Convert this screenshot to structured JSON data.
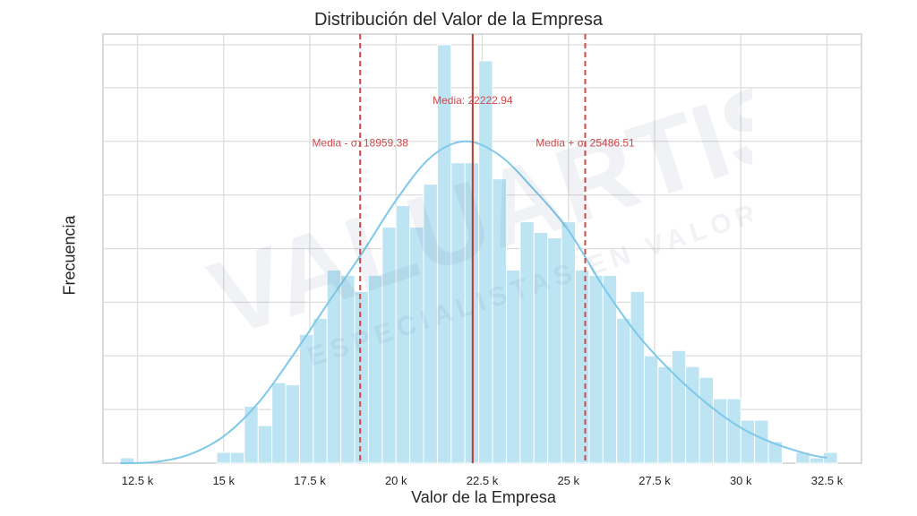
{
  "chart_data": {
    "type": "bar",
    "title": "Distribución del Valor de la Empresa",
    "xlabel": "Valor de la Empresa",
    "ylabel": "Frecuencia",
    "xlim": [
      11500,
      33500
    ],
    "ylim": [
      0,
      40
    ],
    "grid": true,
    "xticks": [
      12500,
      15000,
      17500,
      20000,
      22500,
      25000,
      27500,
      30000,
      32500
    ],
    "xtick_labels": [
      "12.5 k",
      "15 k",
      "17.5 k",
      "20 k",
      "22.5 k",
      "25 k",
      "27.5 k",
      "30 k",
      "32.5 k"
    ],
    "bin_width": 400,
    "bins_start": [
      12000,
      12400,
      12800,
      13200,
      13600,
      14000,
      14400,
      14800,
      15200,
      15600,
      16000,
      16400,
      16800,
      17200,
      17600,
      18000,
      18400,
      18800,
      19200,
      19600,
      20000,
      20400,
      20800,
      21200,
      21600,
      22000,
      22400,
      22800,
      23200,
      23600,
      24000,
      24400,
      24800,
      25200,
      25600,
      26000,
      26400,
      26800,
      27200,
      27600,
      28000,
      28400,
      28800,
      29200,
      29600,
      30000,
      30400,
      30800,
      31200,
      31600,
      32000,
      32400
    ],
    "counts": [
      0.5,
      0,
      0,
      0,
      0,
      0,
      0,
      1,
      1,
      5.3,
      3.5,
      7.5,
      7.3,
      12,
      13.5,
      18,
      17.5,
      16,
      17.5,
      22,
      24,
      22,
      26,
      39,
      28,
      28,
      37.5,
      26.5,
      18,
      22.5,
      21.5,
      21,
      22.5,
      18,
      17.5,
      17.5,
      13.5,
      16,
      10,
      9,
      10.5,
      9,
      8,
      6,
      6,
      4,
      4,
      2,
      0,
      1,
      0.5,
      1
    ],
    "kde": {
      "x": [
        12000,
        13000,
        14000,
        15000,
        16000,
        17000,
        18000,
        19000,
        20000,
        21000,
        22000,
        23000,
        24000,
        25000,
        26000,
        27000,
        28000,
        29000,
        30000,
        31000,
        32000,
        32500
      ],
      "y": [
        0.0,
        0.1,
        0.8,
        2.5,
        5.6,
        10.0,
        14.8,
        19.5,
        24.5,
        28.5,
        30.0,
        28.7,
        25.5,
        21.7,
        16.5,
        12.0,
        8.5,
        5.6,
        3.3,
        1.8,
        0.8,
        0.5
      ]
    },
    "lines": [
      {
        "label": "Media - σ: 18959.38",
        "x": 18959.38,
        "style": "dashed",
        "color": "#d04a4a",
        "label_y": 29.5
      },
      {
        "label": "Media: 22222.94",
        "x": 22222.94,
        "style": "solid",
        "color": "#c0392b",
        "label_y": 33.5
      },
      {
        "label": "Media + σ: 25486.51",
        "x": 25486.51,
        "style": "dashed",
        "color": "#d04a4a",
        "label_y": 29.5
      }
    ],
    "colors": {
      "bars": "#bde4f3",
      "bar_edge": "#ffffff",
      "kde": "#7ec8e8",
      "grid": "#dcdcdc",
      "axes": "#cfcfcf"
    }
  },
  "watermark": {
    "brand": "VALUARTIS",
    "tagline": "ESPECIALISTAS EN VALORACIÓN"
  }
}
